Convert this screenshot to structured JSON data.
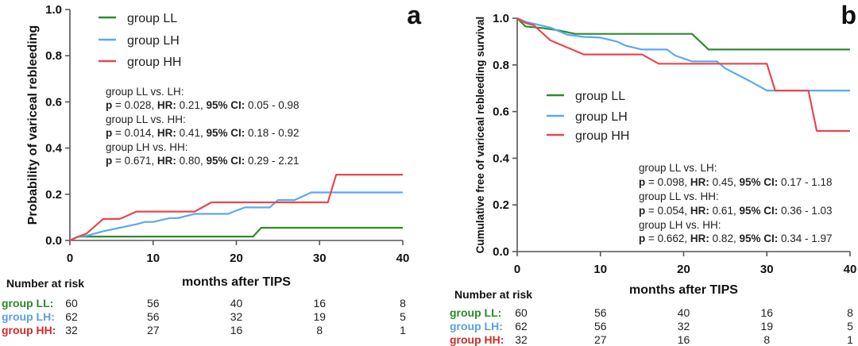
{
  "colors": {
    "LL": "#2e8b2e",
    "LH": "#5aa9f0",
    "HH": "#e8474f",
    "label_LL": "#2a8a2a",
    "label_LH": "#5b9fe0",
    "label_HH": "#d42a2a"
  },
  "stat_labels": {
    "p": "p",
    "hr": "HR:",
    "ci": "95% CI:"
  },
  "chart_data": [
    {
      "type": "line",
      "panel": "a",
      "title": "",
      "xlabel": "months after TIPS",
      "ylabel": "Probability of variceal rebleeding",
      "xlim": [
        0,
        40
      ],
      "ylim": [
        0,
        1
      ],
      "xticks": [
        "0",
        "10",
        "20",
        "30",
        "40"
      ],
      "yticks": [
        "0.0",
        "0.2",
        "0.4",
        "0.6",
        "0.8",
        "1.0"
      ],
      "legend_position": "top-left",
      "series": [
        {
          "name": "group LL",
          "key": "LL",
          "points": [
            [
              0,
              0
            ],
            [
              1,
              0.017
            ],
            [
              22,
              0.017
            ],
            [
              23,
              0.055
            ],
            [
              40,
              0.055
            ]
          ]
        },
        {
          "name": "group LH",
          "key": "LH",
          "points": [
            [
              0,
              0
            ],
            [
              1,
              0.017
            ],
            [
              2,
              0.02
            ],
            [
              4,
              0.04
            ],
            [
              6,
              0.055
            ],
            [
              8,
              0.07
            ],
            [
              9,
              0.08
            ],
            [
              10,
              0.08
            ],
            [
              12,
              0.097
            ],
            [
              13,
              0.097
            ],
            [
              15,
              0.115
            ],
            [
              19,
              0.115
            ],
            [
              21,
              0.143
            ],
            [
              24,
              0.143
            ],
            [
              25,
              0.175
            ],
            [
              27,
              0.175
            ],
            [
              29,
              0.208
            ],
            [
              40,
              0.208
            ]
          ]
        },
        {
          "name": "group HH",
          "key": "HH",
          "points": [
            [
              0,
              0
            ],
            [
              1,
              0.017
            ],
            [
              2,
              0.03
            ],
            [
              4,
              0.093
            ],
            [
              6,
              0.093
            ],
            [
              8,
              0.125
            ],
            [
              15,
              0.125
            ],
            [
              17,
              0.165
            ],
            [
              31,
              0.165
            ],
            [
              32,
              0.285
            ],
            [
              40,
              0.285
            ]
          ]
        }
      ],
      "comparisons": [
        {
          "label": "group LL vs. LH:",
          "p": "= 0.028,",
          "hr": "0.21,",
          "ci": "0.05 - 0.98"
        },
        {
          "label": "group LL vs. HH:",
          "p": "= 0.014,",
          "hr": "0.41,",
          "ci": "0.18 - 0.92"
        },
        {
          "label": "group LH vs. HH:",
          "p": "= 0.671,",
          "hr": "0.80,",
          "ci": "0.29 - 2.21"
        }
      ],
      "risk_table": {
        "title": "Number at risk",
        "rows": [
          {
            "label": "group LL:",
            "key": "LL",
            "values": [
              "60",
              "56",
              "40",
              "16",
              "8"
            ]
          },
          {
            "label": "group LH:",
            "key": "LH",
            "values": [
              "62",
              "56",
              "32",
              "19",
              "5"
            ]
          },
          {
            "label": "group HH:",
            "key": "HH",
            "values": [
              "32",
              "27",
              "16",
              "8",
              "1"
            ]
          }
        ]
      }
    },
    {
      "type": "line",
      "panel": "b",
      "title": "",
      "xlabel": "months after TIPS",
      "ylabel": "Cumulative free of variceal rebleeding survival",
      "xlim": [
        0,
        40
      ],
      "ylim": [
        0,
        1
      ],
      "xticks": [
        "0",
        "10",
        "20",
        "30",
        "40"
      ],
      "yticks": [
        "0.0",
        "0.2",
        "0.4",
        "0.6",
        "0.8",
        "1.0"
      ],
      "legend_position": "center-left",
      "series": [
        {
          "name": "group LL",
          "key": "LL",
          "points": [
            [
              0,
              1
            ],
            [
              1,
              0.965
            ],
            [
              3,
              0.958
            ],
            [
              5,
              0.948
            ],
            [
              7,
              0.933
            ],
            [
              21,
              0.933
            ],
            [
              23,
              0.866
            ],
            [
              40,
              0.866
            ]
          ]
        },
        {
          "name": "group LH",
          "key": "LH",
          "points": [
            [
              0,
              1
            ],
            [
              1,
              0.985
            ],
            [
              4,
              0.96
            ],
            [
              6,
              0.93
            ],
            [
              8,
              0.92
            ],
            [
              10,
              0.917
            ],
            [
              12,
              0.9
            ],
            [
              13,
              0.883
            ],
            [
              15,
              0.866
            ],
            [
              18,
              0.866
            ],
            [
              19,
              0.84
            ],
            [
              21,
              0.815
            ],
            [
              24,
              0.815
            ],
            [
              25,
              0.785
            ],
            [
              28,
              0.73
            ],
            [
              30,
              0.69
            ],
            [
              40,
              0.69
            ]
          ]
        },
        {
          "name": "group HH",
          "key": "HH",
          "points": [
            [
              0,
              1
            ],
            [
              1,
              0.98
            ],
            [
              2,
              0.97
            ],
            [
              4,
              0.905
            ],
            [
              8,
              0.845
            ],
            [
              15,
              0.845
            ],
            [
              17,
              0.805
            ],
            [
              30,
              0.805
            ],
            [
              31,
              0.69
            ],
            [
              35,
              0.69
            ],
            [
              36,
              0.517
            ],
            [
              40,
              0.517
            ]
          ]
        }
      ],
      "comparisons": [
        {
          "label": "group LL vs. LH:",
          "p": "= 0.098,",
          "hr": "0.45,",
          "ci": "0.17 - 1.18"
        },
        {
          "label": "group LL vs. HH:",
          "p": "= 0.054,",
          "hr": "0.61,",
          "ci": "0.36 - 1.03"
        },
        {
          "label": "group LH vs. HH:",
          "p": "= 0.662,",
          "hr": "0.82,",
          "ci": "0.34 - 1.97"
        }
      ],
      "risk_table": {
        "title": "Number at risk",
        "rows": [
          {
            "label": "group LL:",
            "key": "LL",
            "values": [
              "60",
              "56",
              "40",
              "16",
              "8"
            ]
          },
          {
            "label": "group LH:",
            "key": "LH",
            "values": [
              "62",
              "56",
              "32",
              "19",
              "5"
            ]
          },
          {
            "label": "group HH:",
            "key": "HH",
            "values": [
              "32",
              "27",
              "16",
              "8",
              "1"
            ]
          }
        ]
      }
    }
  ]
}
